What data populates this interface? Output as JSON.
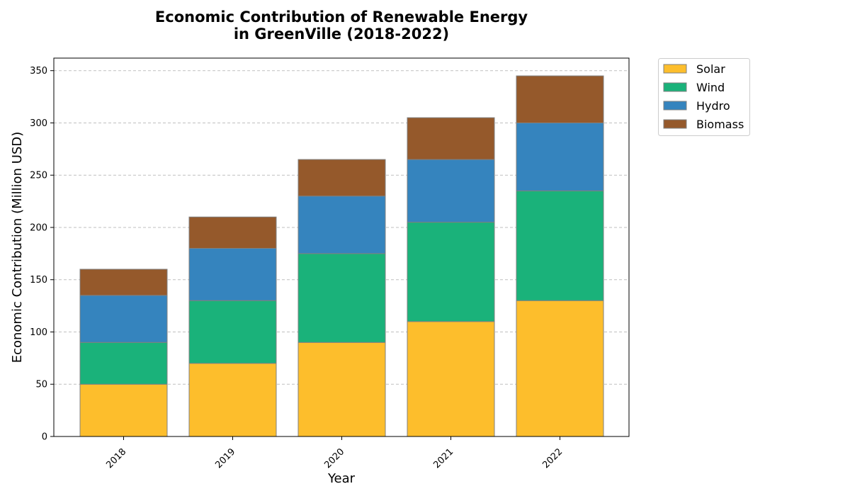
{
  "chart_data": {
    "type": "bar",
    "stacked": true,
    "title_line1": "Economic Contribution of Renewable Energy",
    "title_line2": "in GreenVille (2018-2022)",
    "xlabel": "Year",
    "ylabel": "Economic Contribution (Million USD)",
    "categories": [
      "2018",
      "2019",
      "2020",
      "2021",
      "2022"
    ],
    "ylim": [
      0,
      362
    ],
    "yticks": [
      0,
      50,
      100,
      150,
      200,
      250,
      300,
      350
    ],
    "grid": "y-dashed",
    "legend_position": "outside-top-right",
    "series": [
      {
        "name": "Solar",
        "color": "#FDBE2C",
        "values": [
          50,
          70,
          90,
          110,
          130
        ]
      },
      {
        "name": "Wind",
        "color": "#1AB27A",
        "values": [
          40,
          60,
          85,
          95,
          105
        ]
      },
      {
        "name": "Hydro",
        "color": "#3584BE",
        "values": [
          45,
          50,
          55,
          60,
          65
        ]
      },
      {
        "name": "Biomass",
        "color": "#95592B",
        "values": [
          25,
          30,
          35,
          40,
          45
        ]
      }
    ]
  }
}
